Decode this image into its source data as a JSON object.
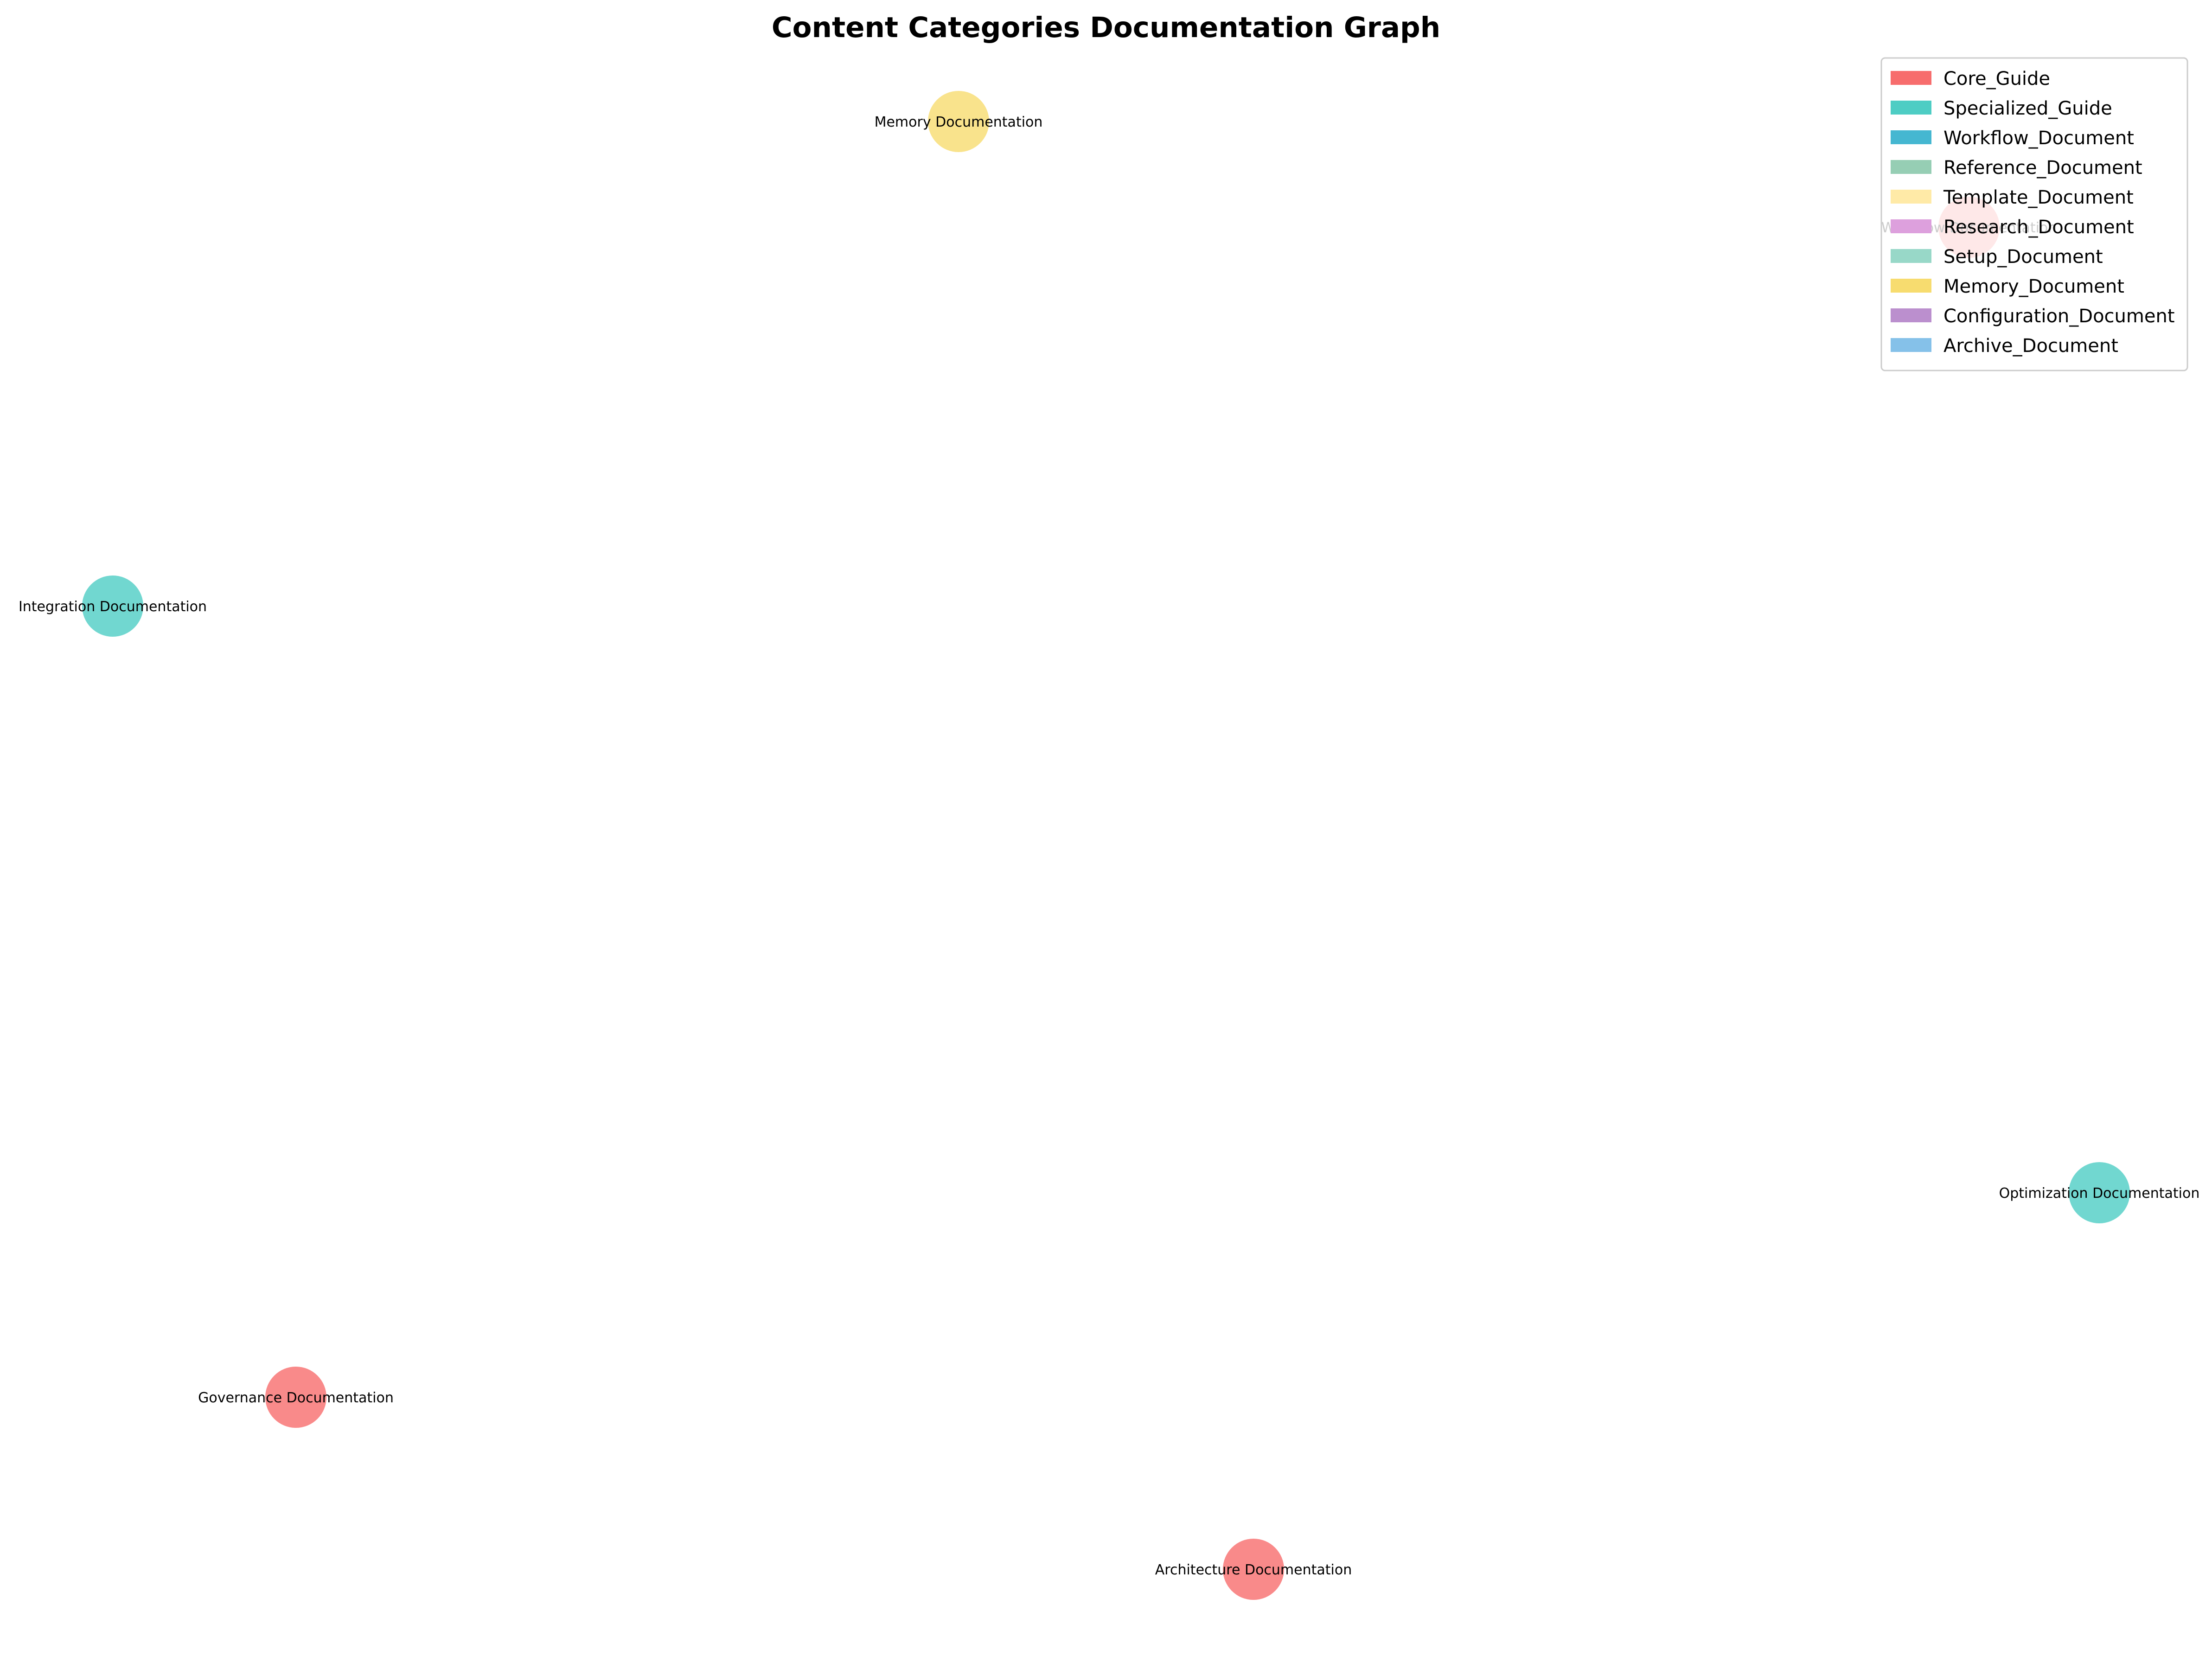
{
  "title": "Content Categories Documentation Graph",
  "legend": [
    {
      "key": "core_guide",
      "label": "Core_Guide",
      "color": "#f76d6d"
    },
    {
      "key": "specialized_guide",
      "label": "Specialized_Guide",
      "color": "#4ecdc4"
    },
    {
      "key": "workflow_document",
      "label": "Workflow_Document",
      "color": "#45b7d1"
    },
    {
      "key": "reference_document",
      "label": "Reference_Document",
      "color": "#96ceb4"
    },
    {
      "key": "template_document",
      "label": "Template_Document",
      "color": "#ffeaa7"
    },
    {
      "key": "research_document",
      "label": "Research_Document",
      "color": "#dda0dd"
    },
    {
      "key": "setup_document",
      "label": "Setup_Document",
      "color": "#98d8c8"
    },
    {
      "key": "memory_document",
      "label": "Memory_Document",
      "color": "#f7dc6f"
    },
    {
      "key": "configuration_document",
      "label": "Configuration_Document",
      "color": "#bb8fce"
    },
    {
      "key": "archive_document",
      "label": "Archive_Document",
      "color": "#85c1e9"
    }
  ],
  "nodes": [
    {
      "id": "memory",
      "label": "Memory Documentation",
      "category": "memory_document"
    },
    {
      "id": "workflow",
      "label": "Workflow Documentation",
      "category": "core_guide"
    },
    {
      "id": "integration",
      "label": "Integration Documentation",
      "category": "specialized_guide"
    },
    {
      "id": "optimization",
      "label": "Optimization Documentation",
      "category": "specialized_guide"
    },
    {
      "id": "governance",
      "label": "Governance Documentation",
      "category": "core_guide"
    },
    {
      "id": "architecture",
      "label": "Architecture Documentation",
      "category": "core_guide"
    }
  ]
}
